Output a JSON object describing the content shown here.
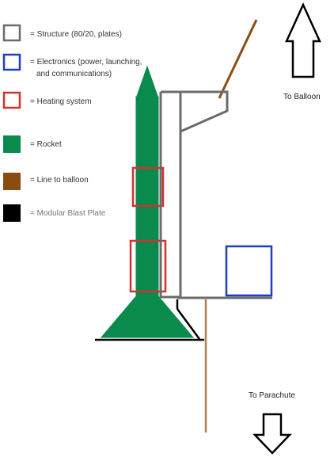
{
  "legend": [
    {
      "key": "structure",
      "lines": [
        "= Structure (80/20, plates)"
      ],
      "color": "#6b6b6b",
      "style": "outline"
    },
    {
      "key": "electronics",
      "lines": [
        "= Electronics (power, launching,",
        "and communications)"
      ],
      "color": "#1f3fbf",
      "style": "outline"
    },
    {
      "key": "heating",
      "lines": [
        "= Heating system"
      ],
      "color": "#d0322e",
      "style": "outline"
    },
    {
      "key": "rocket",
      "lines": [
        "= Rocket"
      ],
      "color": "#0b8a4e",
      "style": "fill"
    },
    {
      "key": "balloon-line",
      "lines": [
        "= Line to balloon"
      ],
      "color": "#8b4c12",
      "style": "fill"
    },
    {
      "key": "blast-plate",
      "lines": [
        "= Modular Blast Plate"
      ],
      "color": "#000000",
      "style": "fill"
    }
  ],
  "labels": {
    "to_balloon": "To Balloon",
    "to_parachute": "To Parachute"
  },
  "colors": {
    "structure": "#6b6b6b",
    "electronics": "#1f3fbf",
    "heating": "#d0322e",
    "rocket": "#0b8a4e",
    "balloon_line": "#8b4c12",
    "parachute_line": "#b08050",
    "blast_plate": "#000000"
  }
}
